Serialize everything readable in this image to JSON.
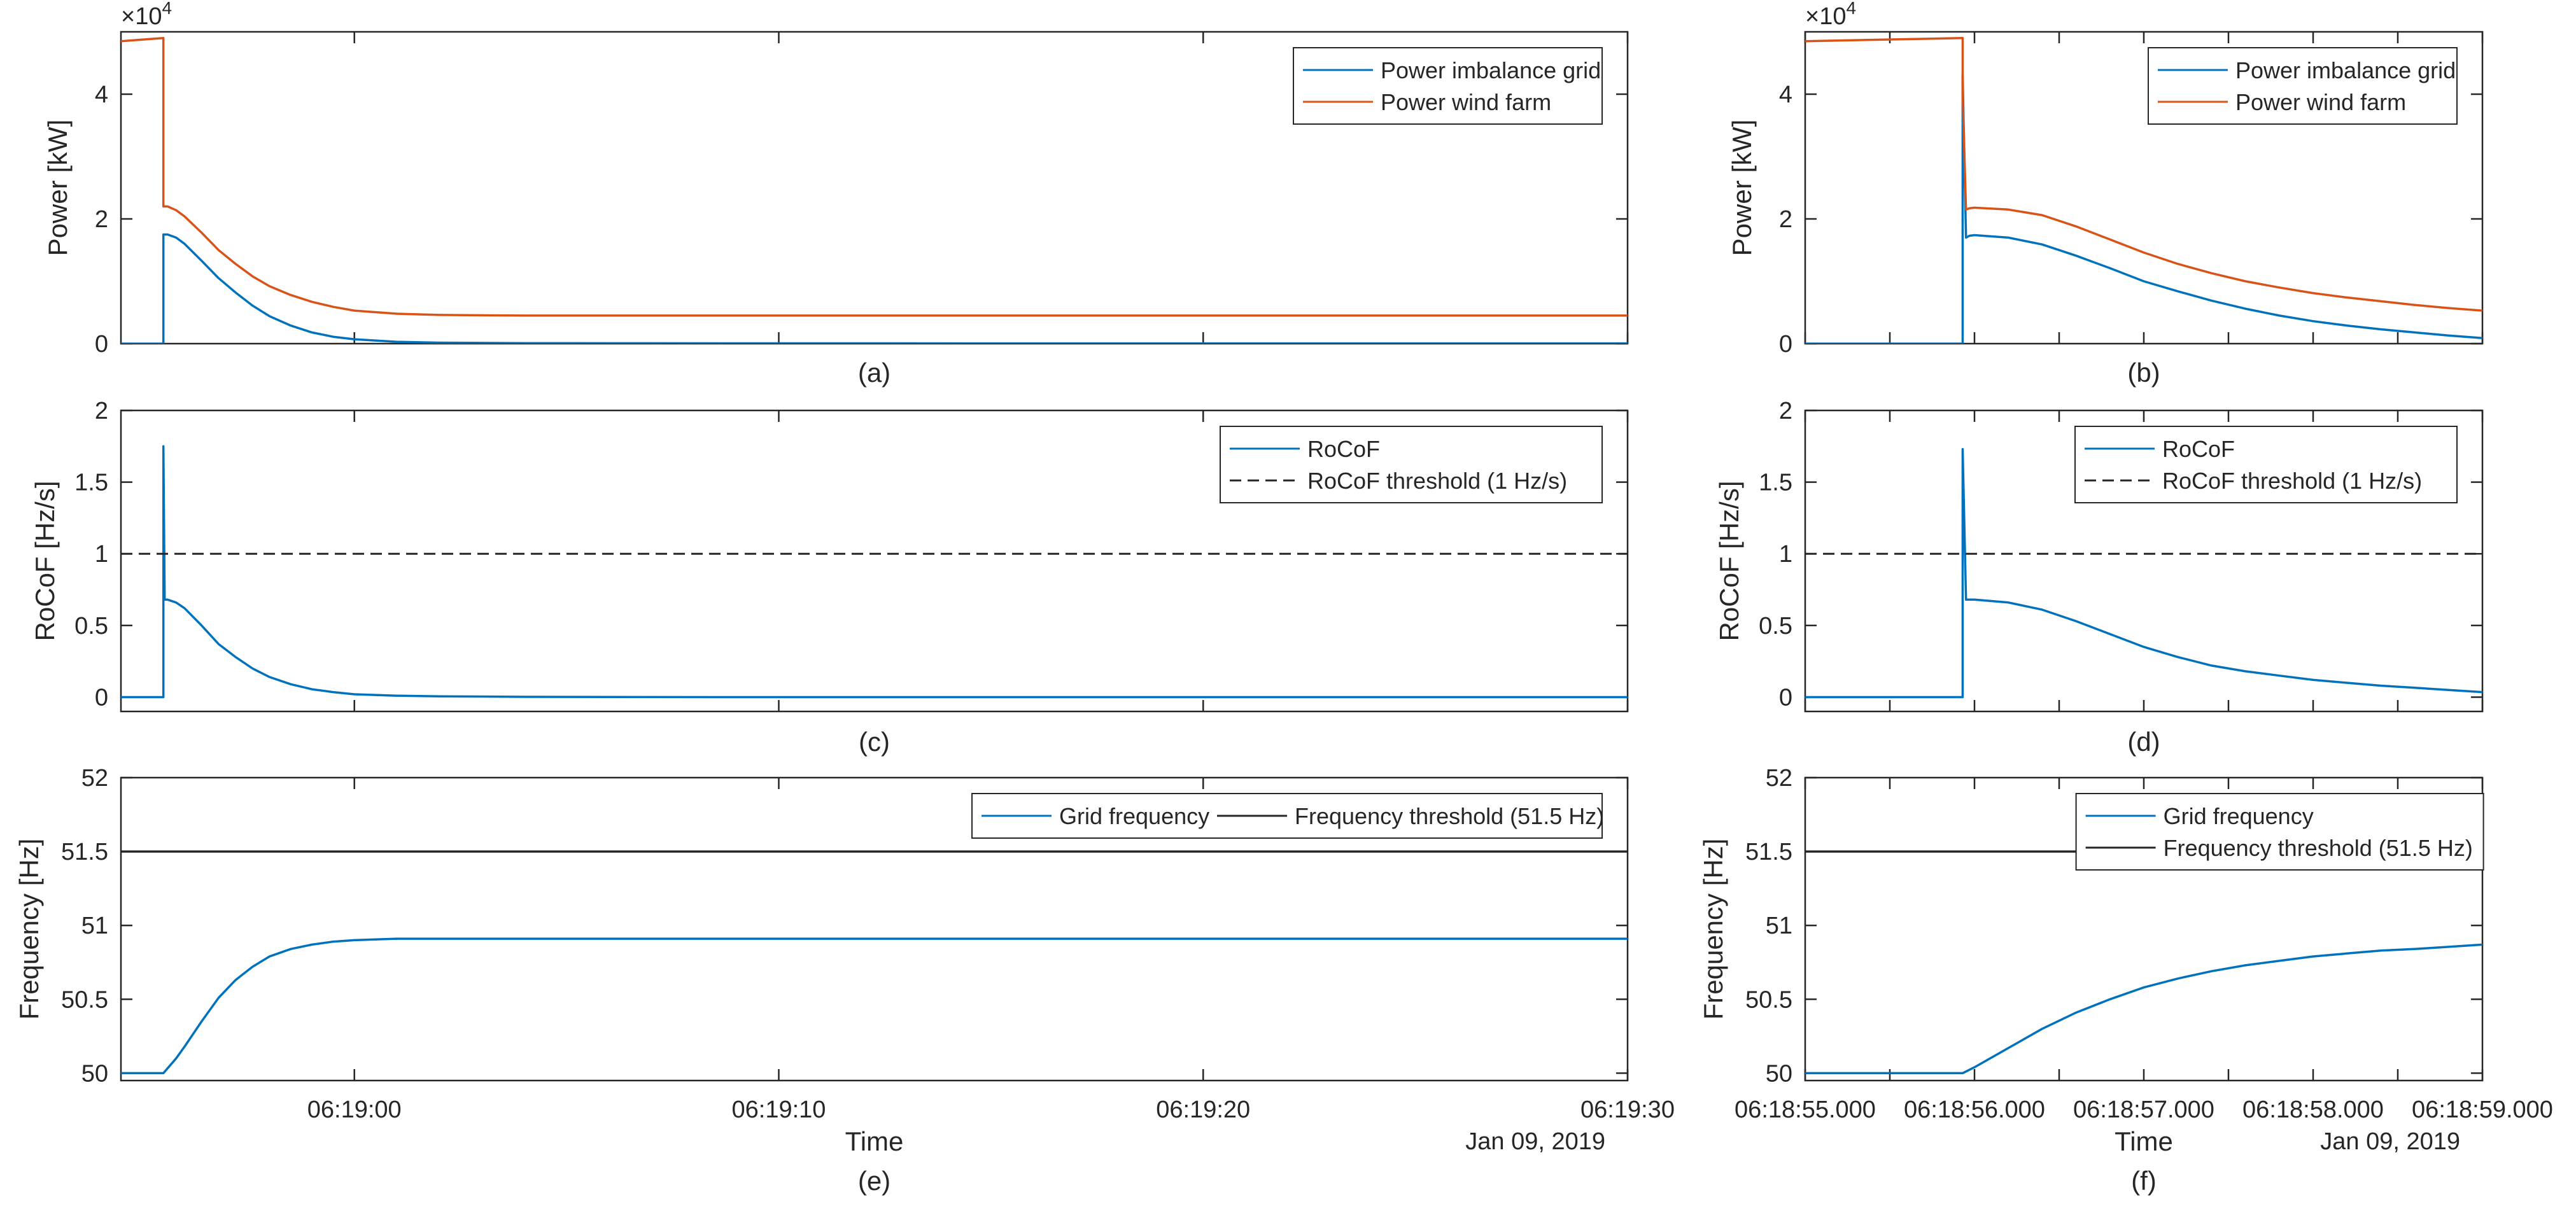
{
  "colors": {
    "imbalance": "#0072BD",
    "wind": "#D95319",
    "rocof": "#0072BD",
    "frequency": "#0072BD",
    "threshold": "#262626",
    "axes": "#262626",
    "grid_tick": "#262626"
  },
  "chart_data": [
    {
      "id": "a",
      "type": "line",
      "caption": "(a)",
      "ylabel": "Power [kW]",
      "exponent_label": "×10",
      "exponent_power": "4",
      "xlim": [
        -5.5,
        30
      ],
      "ylim": [
        0,
        50000
      ],
      "yticks": [
        0,
        20000,
        40000
      ],
      "ytick_labels": [
        "0",
        "2",
        "4"
      ],
      "xticks": [
        0,
        10,
        20,
        30
      ],
      "xtick_labels": [],
      "legend": [
        "Power imbalance grid",
        "Power wind farm"
      ],
      "legend_position": "top-right",
      "series": [
        {
          "name": "Power imbalance grid",
          "color_key": "imbalance",
          "x": [
            -5.5,
            -4.5,
            -4.5,
            -4.4,
            -4.2,
            -4.0,
            -3.6,
            -3.2,
            -2.8,
            -2.4,
            -2.0,
            -1.5,
            -1.0,
            -0.5,
            0.0,
            1.0,
            2.0,
            4.0,
            6.0,
            10.0,
            15.0,
            20.0,
            25.0,
            30.0
          ],
          "y": [
            0,
            0,
            17500,
            17500,
            17000,
            16000,
            13300,
            10500,
            8200,
            6100,
            4400,
            2900,
            1800,
            1100,
            700,
            300,
            150,
            80,
            60,
            50,
            40,
            40,
            40,
            40
          ]
        },
        {
          "name": "Power wind farm",
          "color_key": "wind",
          "x": [
            -5.5,
            -4.5,
            -4.5,
            -4.4,
            -4.2,
            -4.0,
            -3.6,
            -3.2,
            -2.8,
            -2.4,
            -2.0,
            -1.5,
            -1.0,
            -0.5,
            0.0,
            1.0,
            2.0,
            4.0,
            6.0,
            10.0,
            15.0,
            20.0,
            25.0,
            30.0
          ],
          "y": [
            48500,
            49000,
            22000,
            22000,
            21400,
            20400,
            17800,
            15000,
            12800,
            10800,
            9200,
            7800,
            6700,
            5900,
            5300,
            4800,
            4600,
            4500,
            4500,
            4500,
            4500,
            4500,
            4500,
            4500
          ]
        }
      ]
    },
    {
      "id": "b",
      "type": "line",
      "caption": "(b)",
      "ylabel": "Power [kW]",
      "exponent_label": "×10",
      "exponent_power": "4",
      "xlim": [
        55,
        59
      ],
      "ylim": [
        0,
        50000
      ],
      "yticks": [
        0,
        20000,
        40000
      ],
      "ytick_labels": [
        "0",
        "2",
        "4"
      ],
      "xticks": [
        55,
        55.5,
        56,
        56.5,
        57,
        57.5,
        58,
        58.5,
        59
      ],
      "xtick_labels": [],
      "legend": [
        "Power imbalance grid",
        "Power wind farm"
      ],
      "legend_position": "top-right",
      "series": [
        {
          "name": "Power imbalance grid",
          "color_key": "imbalance",
          "x": [
            55,
            55.93,
            55.93,
            55.95,
            55.97,
            56.0,
            56.2,
            56.4,
            56.6,
            56.8,
            57.0,
            57.2,
            57.4,
            57.6,
            57.8,
            58.0,
            58.2,
            58.4,
            58.6,
            58.8,
            59.0
          ],
          "y": [
            0,
            0,
            43000,
            17000,
            17300,
            17400,
            17000,
            15900,
            14100,
            12100,
            10000,
            8400,
            6900,
            5600,
            4500,
            3600,
            2900,
            2300,
            1800,
            1300,
            900
          ]
        },
        {
          "name": "Power wind farm",
          "color_key": "wind",
          "x": [
            55,
            55.93,
            55.93,
            55.95,
            55.97,
            56.0,
            56.2,
            56.4,
            56.6,
            56.8,
            57.0,
            57.2,
            57.4,
            57.6,
            57.8,
            58.0,
            58.2,
            58.4,
            58.6,
            58.8,
            59.0
          ],
          "y": [
            48500,
            49000,
            40000,
            21500,
            21700,
            21800,
            21500,
            20600,
            18800,
            16700,
            14600,
            12800,
            11300,
            10000,
            9000,
            8100,
            7400,
            6800,
            6200,
            5700,
            5300
          ]
        }
      ]
    },
    {
      "id": "c",
      "type": "line",
      "caption": "(c)",
      "ylabel": "RoCoF [Hz/s]",
      "xlim": [
        -5.5,
        30
      ],
      "ylim": [
        -0.1,
        2
      ],
      "yticks": [
        0,
        0.5,
        1,
        1.5,
        2
      ],
      "ytick_labels": [
        "0",
        "0.5",
        "1",
        "1.5",
        "2"
      ],
      "xticks": [
        0,
        10,
        20,
        30
      ],
      "xtick_labels": [],
      "legend": [
        "RoCoF",
        "RoCoF threshold (1 Hz/s)"
      ],
      "legend_position": "top-right",
      "series": [
        {
          "name": "RoCoF",
          "color_key": "rocof",
          "x": [
            -5.5,
            -4.5,
            -4.5,
            -4.47,
            -4.4,
            -4.2,
            -4.0,
            -3.6,
            -3.2,
            -2.8,
            -2.4,
            -2.0,
            -1.5,
            -1.0,
            -0.5,
            0.0,
            1.0,
            2.0,
            4.0,
            6.0,
            10.0,
            20.0,
            30.0
          ],
          "y": [
            0,
            0,
            1.75,
            0.68,
            0.68,
            0.66,
            0.62,
            0.5,
            0.37,
            0.28,
            0.2,
            0.14,
            0.09,
            0.055,
            0.035,
            0.02,
            0.01,
            0.005,
            0.002,
            0.001,
            0,
            0,
            0
          ]
        },
        {
          "name": "RoCoF threshold (1 Hz/s)",
          "color_key": "threshold",
          "dashed": true,
          "x": [
            -5.5,
            30
          ],
          "y": [
            1,
            1
          ]
        }
      ]
    },
    {
      "id": "d",
      "type": "line",
      "caption": "(d)",
      "ylabel": "RoCoF [Hz/s]",
      "xlim": [
        55,
        59
      ],
      "ylim": [
        -0.1,
        2
      ],
      "yticks": [
        0,
        0.5,
        1,
        1.5,
        2
      ],
      "ytick_labels": [
        "0",
        "0.5",
        "1",
        "1.5",
        "2"
      ],
      "xticks": [
        55,
        55.5,
        56,
        56.5,
        57,
        57.5,
        58,
        58.5,
        59
      ],
      "xtick_labels": [],
      "legend": [
        "RoCoF",
        "RoCoF threshold (1 Hz/s)"
      ],
      "legend_position": "top-right",
      "series": [
        {
          "name": "RoCoF",
          "color_key": "rocof",
          "x": [
            55,
            55.93,
            55.93,
            55.95,
            55.97,
            56.0,
            56.2,
            56.4,
            56.6,
            56.8,
            57.0,
            57.2,
            57.4,
            57.6,
            57.8,
            58.0,
            58.2,
            58.4,
            58.6,
            58.8,
            59.0
          ],
          "y": [
            0,
            0,
            1.73,
            0.68,
            0.68,
            0.68,
            0.66,
            0.61,
            0.53,
            0.44,
            0.35,
            0.28,
            0.22,
            0.18,
            0.15,
            0.12,
            0.1,
            0.08,
            0.065,
            0.05,
            0.035
          ]
        },
        {
          "name": "RoCoF threshold (1 Hz/s)",
          "color_key": "threshold",
          "dashed": true,
          "x": [
            55,
            59
          ],
          "y": [
            1,
            1
          ]
        }
      ]
    },
    {
      "id": "e",
      "type": "line",
      "caption": "(e)",
      "ylabel": "Frequency [Hz]",
      "xlabel": "Time",
      "date_label": "Jan 09, 2019",
      "xlim": [
        -5.5,
        30
      ],
      "ylim": [
        49.95,
        52
      ],
      "yticks": [
        50,
        50.5,
        51,
        51.5,
        52
      ],
      "ytick_labels": [
        "50",
        "50.5",
        "51",
        "51.5",
        "52"
      ],
      "xticks": [
        0,
        10,
        20,
        30
      ],
      "xtick_labels": [
        "06:19:00",
        "06:19:10",
        "06:19:20",
        "06:19:30"
      ],
      "legend": [
        "Grid frequency",
        "Frequency threshold (51.5 Hz)"
      ],
      "legend_position": "top-right-horizontal",
      "series": [
        {
          "name": "Grid frequency",
          "color_key": "frequency",
          "x": [
            -5.5,
            -4.5,
            -4.2,
            -4.0,
            -3.6,
            -3.2,
            -2.8,
            -2.4,
            -2.0,
            -1.5,
            -1.0,
            -0.5,
            0.0,
            1.0,
            2.0,
            4.0,
            10.0,
            20.0,
            30.0
          ],
          "y": [
            50.0,
            50.0,
            50.1,
            50.18,
            50.35,
            50.51,
            50.63,
            50.72,
            50.79,
            50.84,
            50.87,
            50.89,
            50.9,
            50.91,
            50.91,
            50.91,
            50.91,
            50.91,
            50.91
          ]
        },
        {
          "name": "Frequency threshold (51.5 Hz)",
          "color_key": "threshold",
          "x": [
            -5.5,
            30
          ],
          "y": [
            51.5,
            51.5
          ]
        }
      ]
    },
    {
      "id": "f",
      "type": "line",
      "caption": "(f)",
      "ylabel": "Frequency [Hz]",
      "xlabel": "Time",
      "date_label": "Jan 09, 2019",
      "xlim": [
        55,
        59
      ],
      "ylim": [
        49.95,
        52
      ],
      "yticks": [
        50,
        50.5,
        51,
        51.5,
        52
      ],
      "ytick_labels": [
        "50",
        "50.5",
        "51",
        "51.5",
        "52"
      ],
      "xticks": [
        55,
        55.5,
        56,
        56.5,
        57,
        57.5,
        58,
        58.5,
        59
      ],
      "xtick_labels": [
        "06:18:55.000",
        "",
        "06:18:56.000",
        "",
        "06:18:57.000",
        "",
        "06:18:58.000",
        "",
        "06:18:59.000"
      ],
      "legend": [
        "Grid frequency",
        "Frequency threshold (51.5 Hz)"
      ],
      "legend_position": "top-center",
      "series": [
        {
          "name": "Grid frequency",
          "color_key": "frequency",
          "x": [
            55,
            55.93,
            56.0,
            56.2,
            56.4,
            56.6,
            56.8,
            57.0,
            57.2,
            57.4,
            57.6,
            57.8,
            58.0,
            58.2,
            58.4,
            58.6,
            58.8,
            59.0
          ],
          "y": [
            50.0,
            50.0,
            50.04,
            50.17,
            50.3,
            50.41,
            50.5,
            50.58,
            50.64,
            50.69,
            50.73,
            50.76,
            50.79,
            50.81,
            50.83,
            50.84,
            50.855,
            50.87
          ]
        },
        {
          "name": "Frequency threshold (51.5 Hz)",
          "color_key": "threshold",
          "x": [
            55,
            59
          ],
          "y": [
            51.5,
            51.5
          ]
        }
      ]
    }
  ]
}
